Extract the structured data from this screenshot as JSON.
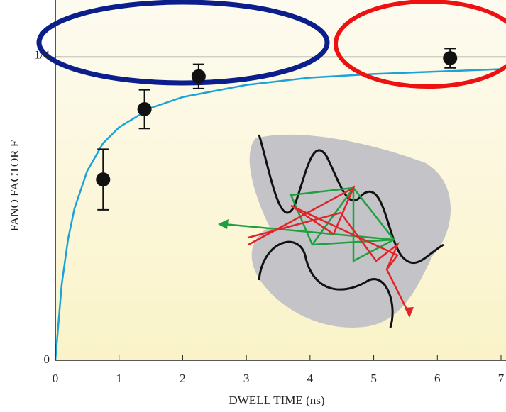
{
  "chart_data": {
    "type": "scatter",
    "x_label": "DWELL TIME (ns)",
    "y_label": "FANO FACTOR F",
    "xlim": [
      0,
      7
    ],
    "ylim": [
      0,
      0.297
    ],
    "xticks": [
      0,
      1,
      2,
      3,
      4,
      5,
      6,
      7
    ],
    "yticks": [
      0,
      {
        "value": 0.25,
        "label": "1/4"
      }
    ],
    "reference_line": 0.25,
    "points": {
      "color": "#111111",
      "x": [
        0.75,
        1.4,
        2.25,
        6.2
      ],
      "values": [
        0.149,
        0.207,
        0.234,
        0.249
      ],
      "errors": [
        0.025,
        0.016,
        0.01,
        0.008
      ]
    },
    "curve": {
      "color": "#1aa3d9",
      "x": [
        0,
        0.1,
        0.2,
        0.3,
        0.5,
        0.75,
        1,
        1.5,
        2,
        3,
        4,
        5,
        6,
        7
      ],
      "values": [
        0,
        0.0625,
        0.1,
        0.125,
        0.156,
        0.179,
        0.192,
        0.208,
        0.217,
        0.227,
        0.233,
        0.236,
        0.238,
        0.24
      ]
    }
  }
}
